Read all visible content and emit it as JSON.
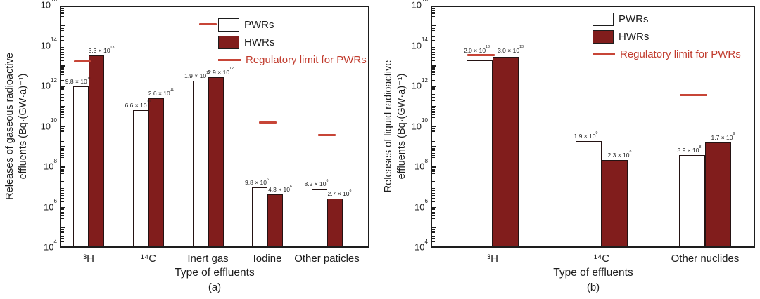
{
  "colors": {
    "pwr_fill": "#ffffff",
    "hwr_fill": "#811d1c",
    "bar_border": "#241313",
    "limit_red": "#c74537",
    "legend_red_text": "#c13b2d",
    "axis": "#1d1d1d"
  },
  "chart_data": [
    {
      "panel_label": "(a)",
      "type": "bar",
      "xlabel": "Type of effluents",
      "ylabel_line1": "Releases of gaseous radioactive",
      "ylabel_line2": "effluents (Bq·(GW·a)⁻¹)",
      "yaxis": {
        "scale": "log",
        "min_exp": 4,
        "max_exp": 16,
        "labeled_exps": [
          16,
          14,
          12,
          10,
          8,
          6,
          4
        ],
        "unit": "Bq·(GW·a)⁻¹"
      },
      "categories": [
        "³H",
        "¹⁴C",
        "Inert gas",
        "Iodine",
        "Other paticles"
      ],
      "series": [
        {
          "name": "PWRs",
          "values": [
            980000000000.0,
            66000000000.0,
            1900000000000.0,
            9800000.0,
            8200000.0
          ],
          "value_labels": [
            {
              "m": "9.8",
              "e": "11"
            },
            {
              "m": "6.6",
              "e": "10"
            },
            {
              "m": "1.9",
              "e": "12"
            },
            {
              "m": "9.8",
              "e": "6"
            },
            {
              "m": "8.2",
              "e": "6"
            }
          ]
        },
        {
          "name": "HWRs",
          "values": [
            33000000000000.0,
            260000000000.0,
            2900000000000.0,
            4300000.0,
            2700000.0
          ],
          "value_labels": [
            {
              "m": "3.3",
              "e": "13"
            },
            {
              "m": "2.6",
              "e": "11"
            },
            {
              "m": "2.9",
              "e": "12"
            },
            {
              "m": "4.3",
              "e": "6"
            },
            {
              "m": "2.7",
              "e": "6"
            }
          ]
        }
      ],
      "regulatory_limits": [
        {
          "category": "³H",
          "category_index": 0,
          "value": 17000000000000.0,
          "align": "pwr"
        },
        {
          "category": "Inert gas",
          "category_index": 2,
          "value": 1200000000000000.0,
          "align": "group"
        },
        {
          "category": "Iodine",
          "category_index": 3,
          "value": 16000000000.0,
          "align": "group"
        },
        {
          "category": "Other paticles",
          "category_index": 4,
          "value": 3700000000.0,
          "align": "group"
        }
      ],
      "limit_legend_label": "Regulatory limit for PWRs"
    },
    {
      "panel_label": "(b)",
      "type": "bar",
      "xlabel": "Type of effluents",
      "ylabel_line1": "Releases of liquid radioactive",
      "ylabel_line2": "effluents (Bq·(GW·a)⁻¹)",
      "yaxis": {
        "scale": "log",
        "min_exp": 4,
        "max_exp": 16,
        "labeled_exps": [
          16,
          14,
          12,
          10,
          8,
          6,
          4
        ],
        "unit": "Bq·(GW·a)⁻¹"
      },
      "categories": [
        "³H",
        "¹⁴C",
        "Other nuclides"
      ],
      "series": [
        {
          "name": "PWRs",
          "values": [
            20000000000000.0,
            1900000000.0,
            390000000.0
          ],
          "value_labels": [
            {
              "m": "2.0",
              "e": "13"
            },
            {
              "m": "1.9",
              "e": "9"
            },
            {
              "m": "3.9",
              "e": "8"
            }
          ]
        },
        {
          "name": "HWRs",
          "values": [
            30000000000000.0,
            230000000.0,
            1700000000.0
          ],
          "value_labels": [
            {
              "m": "3.0",
              "e": "13"
            },
            {
              "m": "2.3",
              "e": "8"
            },
            {
              "m": "1.7",
              "e": "9"
            }
          ]
        }
      ],
      "regulatory_limits": [
        {
          "category": "³H",
          "category_index": 0,
          "value": 35000000000000.0,
          "align": "pwr"
        },
        {
          "category": "Other nuclides",
          "category_index": 2,
          "value": 380000000000.0,
          "align": "pwr"
        }
      ],
      "limit_legend_label": "Regulatory limit for PWRs"
    }
  ]
}
